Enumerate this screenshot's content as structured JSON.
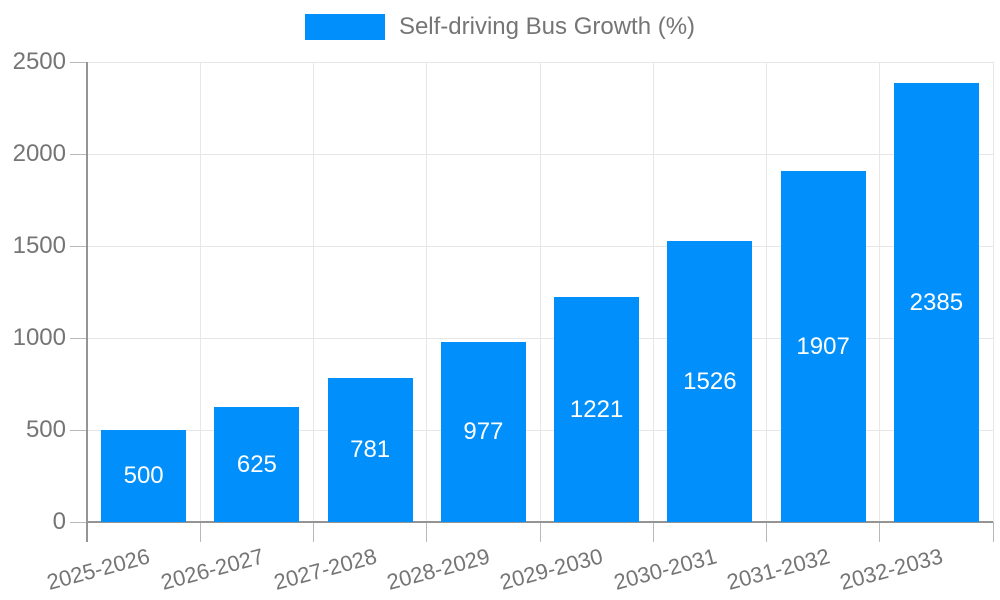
{
  "chart_data": {
    "type": "bar",
    "title": "",
    "legend": {
      "label": "Self-driving Bus Growth (%)",
      "position": "top"
    },
    "categories": [
      "2025-2026",
      "2026-2027",
      "2027-2028",
      "2028-2029",
      "2029-2030",
      "2030-2031",
      "2031-2032",
      "2032-2033"
    ],
    "values": [
      500,
      625,
      781,
      977,
      1221,
      1526,
      1907,
      2385
    ],
    "bar_value_labels": [
      "500",
      "625",
      "781",
      "977",
      "1221",
      "1526",
      "1907",
      "2385"
    ],
    "xlabel": "",
    "ylabel": "",
    "ylim": [
      0,
      2500
    ],
    "yticks": [
      0,
      500,
      1000,
      1500,
      2000,
      2500
    ],
    "grid": true,
    "legend_position": "top-center",
    "colors": {
      "bar": "#008FFB",
      "bar_label_text": "#ffffff",
      "axis_text": "#757575",
      "axis_line": "#949494",
      "gridline": "#e7e7e7",
      "tick": "#b8b8b8"
    }
  }
}
